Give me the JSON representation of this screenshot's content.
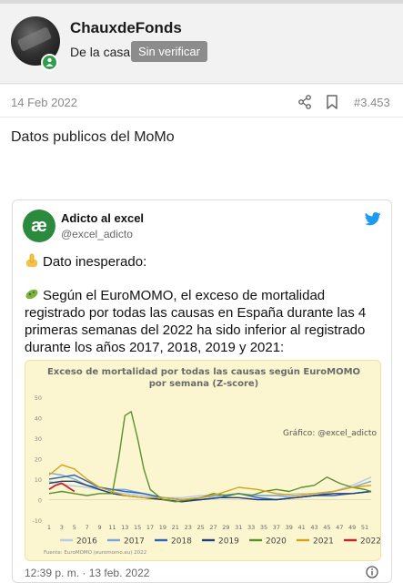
{
  "user": {
    "name": "ChauxdeFonds",
    "title": "De la casa",
    "badge": "Sin verificar"
  },
  "post": {
    "date": "14 Feb 2022",
    "number": "#3.453",
    "text": "Datos publicos del MoMo"
  },
  "tweet": {
    "display_name": "Adicto al excel",
    "handle": "@excel_adicto",
    "avatar_text": "æ",
    "line1": "Dato inesperado:",
    "paragraph": "Según el EuroMOMO, el exceso de mortalidad registrado por todas las causas en España durante las 4 primeras semanas del 2022 ha sido inferior al registrado durante los años 2017, 2018, 2019 y 2021:",
    "footer": "12:39 p. m. · 13 feb. 2022"
  },
  "icons": {
    "share": "share-icon",
    "bookmark": "bookmark-icon",
    "online": "online-status-icon",
    "twitter": "twitter-bird-icon",
    "info": "info-icon",
    "hand": "pointing-hand-emoji",
    "virus": "microbe-emoji"
  },
  "colors": {
    "online": "#2e9d4e",
    "twitter": "#1d9bf0",
    "chart_bg": "#fbf6cf"
  },
  "chart_data": {
    "type": "line",
    "title": "Exceso de mortalidad por todas las causas según EuroMOMO",
    "subtitle": "por semana (Z-score)",
    "watermark": "Gráfico: @excel_adicto",
    "source": "Fuente: EuroMOMO (euromomo.eu) 2022",
    "xlabel": "",
    "ylabel": "",
    "x_ticks": [
      1,
      3,
      5,
      7,
      9,
      11,
      13,
      15,
      17,
      19,
      21,
      23,
      25,
      27,
      29,
      31,
      33,
      35,
      37,
      39,
      41,
      43,
      45,
      47,
      49,
      51
    ],
    "y_ticks": [
      -10,
      0,
      10,
      20,
      30,
      40,
      50
    ],
    "ylim": [
      -10,
      50
    ],
    "xlim": [
      1,
      52
    ],
    "grid": false,
    "legend_position": "bottom",
    "series": [
      {
        "name": "2016",
        "color": "#b8cce8",
        "x": [
          1,
          4,
          7,
          10,
          13,
          16,
          19,
          22,
          25,
          28,
          31,
          34,
          37,
          40,
          43,
          46,
          49,
          52
        ],
        "y": [
          9,
          7,
          6,
          4,
          3,
          2,
          1,
          1,
          2,
          2,
          3,
          2,
          2,
          3,
          3,
          4,
          7,
          11
        ]
      },
      {
        "name": "2017",
        "color": "#7aa6dc",
        "x": [
          1,
          3,
          5,
          7,
          9,
          11,
          13,
          16,
          19,
          22,
          25,
          28,
          31,
          34,
          37,
          40,
          43,
          46,
          49,
          52
        ],
        "y": [
          13,
          12,
          10,
          7,
          6,
          5,
          5,
          3,
          1,
          0,
          1,
          2,
          3,
          2,
          2,
          1,
          2,
          4,
          6,
          9
        ]
      },
      {
        "name": "2018",
        "color": "#2c64b8",
        "x": [
          1,
          3,
          5,
          7,
          9,
          11,
          13,
          16,
          19,
          22,
          25,
          28,
          31,
          34,
          37,
          40,
          43,
          46,
          49,
          52
        ],
        "y": [
          10,
          11,
          12,
          9,
          6,
          5,
          4,
          3,
          1,
          0,
          0,
          1,
          3,
          1,
          0,
          1,
          2,
          2,
          3,
          4
        ]
      },
      {
        "name": "2019",
        "color": "#1f3e7a",
        "x": [
          1,
          3,
          5,
          7,
          9,
          11,
          13,
          16,
          19,
          22,
          25,
          28,
          31,
          34,
          37,
          40,
          43,
          46,
          49,
          52
        ],
        "y": [
          8,
          9,
          9,
          7,
          5,
          3,
          2,
          1,
          0,
          -1,
          0,
          1,
          1,
          0,
          0,
          1,
          2,
          3,
          3,
          4
        ]
      },
      {
        "name": "2020",
        "color": "#5a8f2e",
        "x": [
          1,
          3,
          5,
          7,
          9,
          11,
          12,
          13,
          14,
          15,
          16,
          17,
          19,
          21,
          23,
          25,
          27,
          29,
          31,
          33,
          35,
          37,
          39,
          41,
          43,
          45,
          47,
          49,
          51,
          52
        ],
        "y": [
          3,
          4,
          3,
          2,
          3,
          3,
          20,
          41,
          43,
          30,
          15,
          5,
          0,
          -1,
          0,
          1,
          3,
          2,
          3,
          2,
          4,
          5,
          4,
          6,
          7,
          11,
          8,
          6,
          5,
          4
        ]
      },
      {
        "name": "2021",
        "color": "#d6a21a",
        "x": [
          1,
          3,
          5,
          7,
          9,
          11,
          13,
          16,
          19,
          22,
          25,
          28,
          31,
          34,
          37,
          40,
          43,
          46,
          49,
          52
        ],
        "y": [
          12,
          17,
          15,
          10,
          6,
          4,
          2,
          1,
          1,
          0,
          1,
          3,
          6,
          5,
          3,
          2,
          3,
          4,
          6,
          7
        ]
      },
      {
        "name": "2022",
        "color": "#c0262b",
        "x": [
          1,
          2,
          3,
          4,
          5
        ],
        "y": [
          5,
          7,
          8,
          6,
          4
        ]
      }
    ]
  }
}
